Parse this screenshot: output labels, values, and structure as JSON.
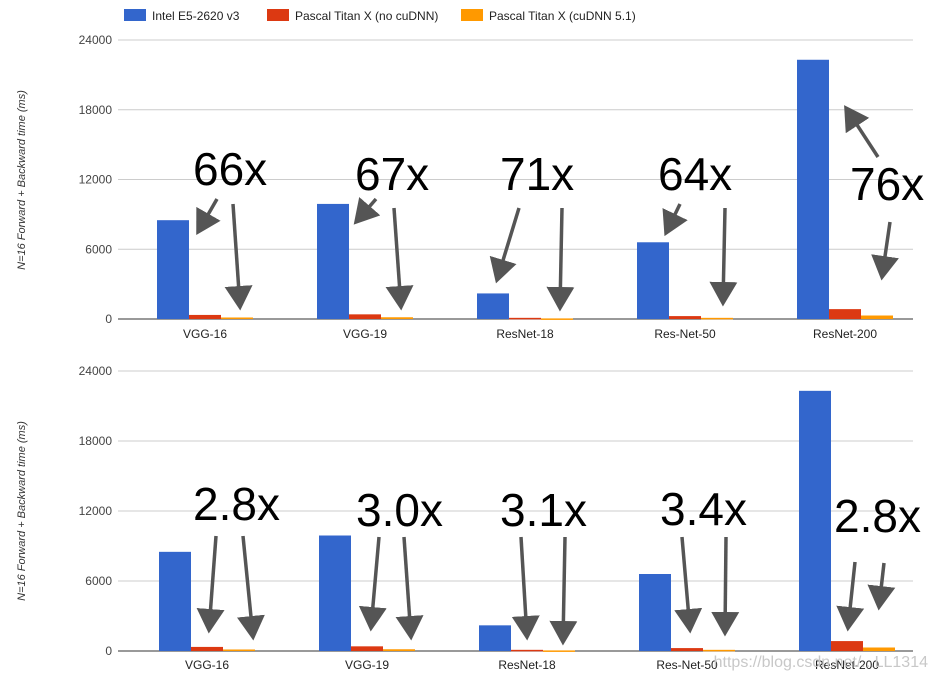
{
  "legend": [
    {
      "label": "Intel E5-2620 v3",
      "color": "#3366cc"
    },
    {
      "label": "Pascal Titan X (no cuDNN)",
      "color": "#dc3912"
    },
    {
      "label": "Pascal Titan X (cuDNN 5.1)",
      "color": "#ff9900"
    }
  ],
  "watermark": "https://blog.csdn.net/...LL1314",
  "chart_data": [
    {
      "type": "bar",
      "ylabel": "N=16 Forward + Backward time (ms)",
      "ylim": [
        0,
        24000
      ],
      "yticks": [
        "0",
        "6000",
        "12000",
        "18000",
        "24000"
      ],
      "grid": true,
      "legend_position": "top",
      "categories": [
        "VGG-16",
        "VGG-19",
        "ResNet-18",
        "Res-Net-50",
        "ResNet-200"
      ],
      "series": [
        {
          "name": "Intel E5-2620 v3",
          "values": [
            8500,
            9900,
            2200,
            6600,
            22300
          ]
        },
        {
          "name": "Pascal Titan X (no cuDNN)",
          "values": [
            350,
            400,
            100,
            250,
            850
          ]
        },
        {
          "name": "Pascal Titan X (cuDNN 5.1)",
          "values": [
            130,
            150,
            50,
            100,
            300
          ]
        }
      ],
      "annotations": [
        "66x",
        "67x",
        "71x",
        "64x",
        "76x"
      ]
    },
    {
      "type": "bar",
      "ylabel": "N=16 Forward + Backward time (ms)",
      "ylim": [
        0,
        24000
      ],
      "yticks": [
        "0",
        "6000",
        "12000",
        "18000",
        "24000"
      ],
      "grid": true,
      "legend_position": "none",
      "categories": [
        "VGG-16",
        "VGG-19",
        "ResNet-18",
        "Res-Net-50",
        "ResNet-200"
      ],
      "series": [
        {
          "name": "Intel E5-2620 v3",
          "values": [
            8500,
            9900,
            2200,
            6600,
            22300
          ]
        },
        {
          "name": "Pascal Titan X (no cuDNN)",
          "values": [
            350,
            400,
            100,
            250,
            850
          ]
        },
        {
          "name": "Pascal Titan X (cuDNN 5.1)",
          "values": [
            130,
            150,
            50,
            100,
            300
          ]
        }
      ],
      "annotations": [
        "2.8x",
        "3.0x",
        "3.1x",
        "3.4x",
        "2.8x"
      ]
    }
  ]
}
